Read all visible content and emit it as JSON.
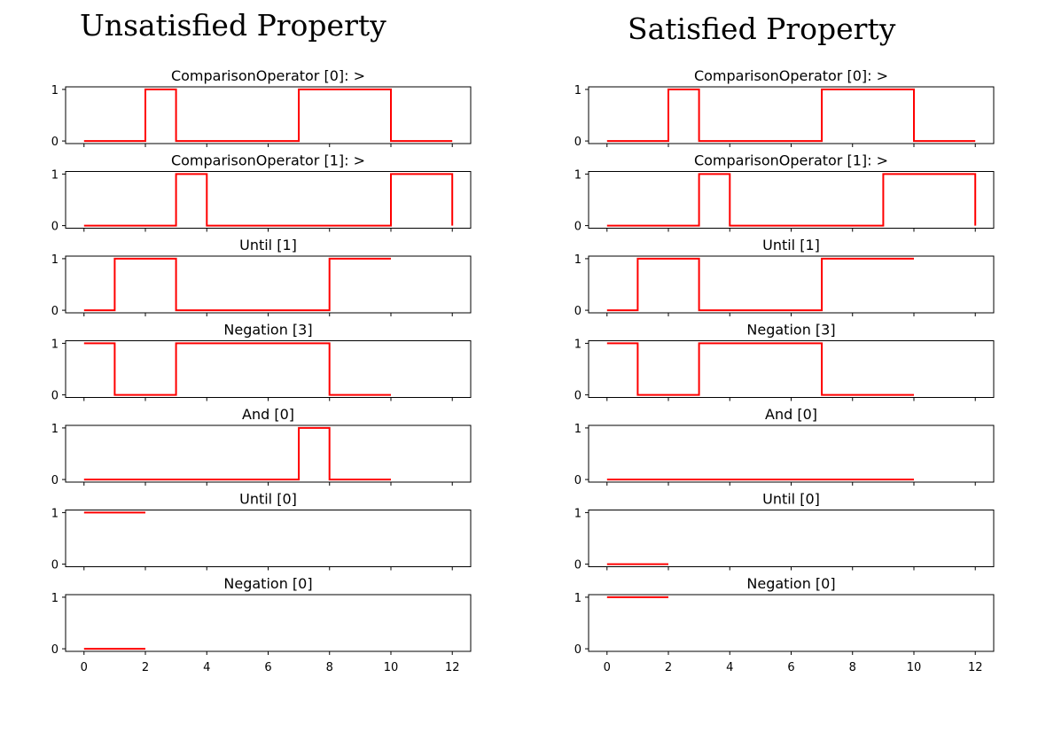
{
  "columns": [
    {
      "title": "Unsatisfied Property",
      "chart_data": [
        {
          "type": "line",
          "step": true,
          "title": "ComparisonOperator [0]: >",
          "x": [
            0,
            2,
            3,
            7,
            10,
            12
          ],
          "values": [
            0,
            1,
            0,
            1,
            0,
            0
          ]
        },
        {
          "type": "line",
          "step": true,
          "title": "ComparisonOperator [1]: >",
          "x": [
            0,
            3,
            4,
            10,
            12
          ],
          "values": [
            0,
            1,
            0,
            1,
            0
          ]
        },
        {
          "type": "line",
          "step": true,
          "title": "Until [1]",
          "x": [
            0,
            1,
            3,
            8,
            10
          ],
          "values": [
            0,
            1,
            0,
            1,
            1
          ]
        },
        {
          "type": "line",
          "step": true,
          "title": "Negation [3]",
          "x": [
            0,
            1,
            3,
            8,
            10
          ],
          "values": [
            1,
            0,
            1,
            0,
            0
          ]
        },
        {
          "type": "line",
          "step": true,
          "title": "And [0]",
          "x": [
            0,
            7,
            8,
            10
          ],
          "values": [
            0,
            1,
            0,
            0
          ]
        },
        {
          "type": "line",
          "step": true,
          "title": "Until [0]",
          "x": [
            0,
            2
          ],
          "values": [
            1,
            1
          ]
        },
        {
          "type": "line",
          "step": true,
          "title": "Negation [0]",
          "x": [
            0,
            2
          ],
          "values": [
            0,
            0
          ]
        }
      ]
    },
    {
      "title": "Satisfied Property",
      "chart_data": [
        {
          "type": "line",
          "step": true,
          "title": "ComparisonOperator [0]: >",
          "x": [
            0,
            2,
            3,
            7,
            10,
            12
          ],
          "values": [
            0,
            1,
            0,
            1,
            0,
            0
          ]
        },
        {
          "type": "line",
          "step": true,
          "title": "ComparisonOperator [1]: >",
          "x": [
            0,
            3,
            4,
            9,
            12
          ],
          "values": [
            0,
            1,
            0,
            1,
            0
          ]
        },
        {
          "type": "line",
          "step": true,
          "title": "Until [1]",
          "x": [
            0,
            1,
            3,
            7,
            10
          ],
          "values": [
            0,
            1,
            0,
            1,
            1
          ]
        },
        {
          "type": "line",
          "step": true,
          "title": "Negation [3]",
          "x": [
            0,
            1,
            3,
            7,
            10
          ],
          "values": [
            1,
            0,
            1,
            0,
            0
          ]
        },
        {
          "type": "line",
          "step": true,
          "title": "And [0]",
          "x": [
            0,
            10
          ],
          "values": [
            0,
            0
          ]
        },
        {
          "type": "line",
          "step": true,
          "title": "Until [0]",
          "x": [
            0,
            2
          ],
          "values": [
            0,
            0
          ]
        },
        {
          "type": "line",
          "step": true,
          "title": "Negation [0]",
          "x": [
            0,
            2
          ],
          "values": [
            1,
            1
          ]
        }
      ]
    }
  ],
  "axes": {
    "x_ticks": [
      0,
      2,
      4,
      6,
      8,
      10,
      12
    ],
    "y_ticks": [
      0,
      1
    ],
    "xlim": [
      -0.6,
      12.6
    ],
    "ylim": [
      -0.05,
      1.05
    ],
    "line_color": "#ff0000",
    "grid": false,
    "x_tick_labels_on_bottom_panel_only": true
  }
}
